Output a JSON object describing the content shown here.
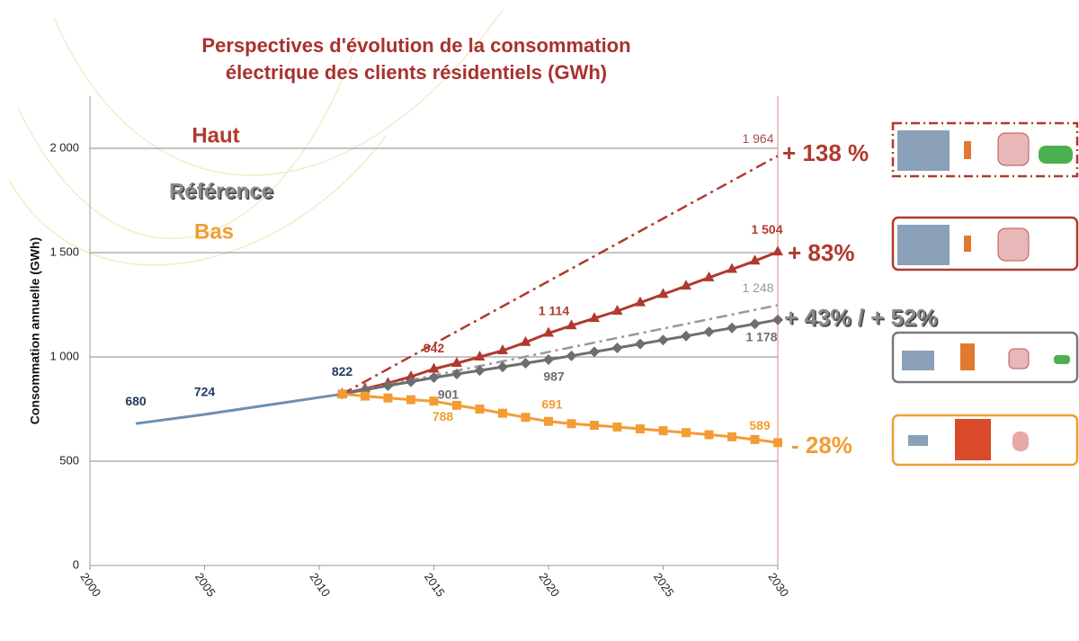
{
  "chart_data": {
    "type": "line",
    "title": [
      "Perspectives d'évolution de la consommation",
      "électrique des clients résidentiels (GWh)"
    ],
    "title_color": "#a8322d",
    "y_label": "Consommation annuelle (GWh)",
    "xlim": [
      2000,
      2030
    ],
    "xticks": [
      2000,
      2005,
      2010,
      2015,
      2020,
      2025,
      2030
    ],
    "ylim": [
      0,
      2250
    ],
    "yticks": [
      0,
      500,
      {
        "value": 1000,
        "label": "1 000"
      },
      {
        "value": 1500,
        "label": "1 500"
      },
      {
        "value": 2000,
        "label": "2 000"
      }
    ],
    "grid": true,
    "legend": [
      {
        "text": "Haut",
        "color": "#b03a2e"
      },
      {
        "text": "Référence",
        "color": "#8a8a8a"
      },
      {
        "text": "Bas",
        "color": "#f39c34"
      }
    ],
    "series": [
      {
        "color": "#6f8fb0",
        "dash": "solid",
        "marker": "none",
        "label_color": "#1f3b5a",
        "x": [
          2002,
          2005,
          2011
        ],
        "values": [
          680,
          724,
          822
        ],
        "value_labels": [
          "680",
          "724",
          "822"
        ]
      },
      {
        "color": "#b03a2e",
        "dash": "dashdot",
        "marker": "none",
        "label_color": "#a05050",
        "x": [
          2011,
          2030
        ],
        "values": [
          822,
          1964
        ],
        "value_labels": [
          null,
          "1 964"
        ]
      },
      {
        "color": "#b03a2e",
        "dash": "solid",
        "marker": "triangle",
        "label_color": "#b03a2e",
        "x": [
          2011,
          2012,
          2013,
          2014,
          2015,
          2016,
          2017,
          2018,
          2019,
          2020,
          2021,
          2022,
          2023,
          2024,
          2025,
          2026,
          2027,
          2028,
          2029,
          2030
        ],
        "values": [
          822,
          848,
          874,
          905,
          942,
          970,
          1000,
          1030,
          1070,
          1114,
          1150,
          1185,
          1220,
          1260,
          1300,
          1340,
          1380,
          1420,
          1460,
          1504
        ],
        "value_labels": [
          null,
          null,
          null,
          null,
          "942",
          null,
          null,
          null,
          null,
          "1 114",
          null,
          null,
          null,
          null,
          null,
          null,
          null,
          null,
          null,
          "1 504"
        ]
      },
      {
        "color": "#999999",
        "dash": "dashdot",
        "marker": "none",
        "label_color": "#999999",
        "x": [
          2011,
          2030
        ],
        "values": [
          822,
          1248
        ],
        "value_labels": [
          null,
          "1 248"
        ]
      },
      {
        "color": "#6e6e6e",
        "dash": "solid",
        "marker": "diamond",
        "label_color": "#6e6e6e",
        "x": [
          2011,
          2012,
          2013,
          2014,
          2015,
          2016,
          2017,
          2018,
          2019,
          2020,
          2021,
          2022,
          2023,
          2024,
          2025,
          2026,
          2027,
          2028,
          2029,
          2030
        ],
        "values": [
          822,
          842,
          862,
          881,
          901,
          918,
          935,
          952,
          970,
          987,
          1005,
          1024,
          1043,
          1062,
          1081,
          1100,
          1120,
          1139,
          1158,
          1178
        ],
        "value_labels": [
          null,
          null,
          null,
          null,
          "901",
          null,
          null,
          null,
          null,
          "987",
          null,
          null,
          null,
          null,
          null,
          null,
          null,
          null,
          null,
          "1 178"
        ]
      },
      {
        "color": "#f39c34",
        "dash": "solid",
        "marker": "square",
        "label_color": "#f39c34",
        "x": [
          2011,
          2012,
          2013,
          2014,
          2015,
          2016,
          2017,
          2018,
          2019,
          2020,
          2021,
          2022,
          2023,
          2024,
          2025,
          2026,
          2027,
          2028,
          2029,
          2030
        ],
        "values": [
          822,
          812,
          803,
          795,
          788,
          768,
          750,
          730,
          710,
          691,
          680,
          672,
          664,
          655,
          646,
          637,
          627,
          617,
          604,
          589
        ],
        "value_labels": [
          null,
          null,
          null,
          null,
          "788",
          null,
          null,
          null,
          null,
          "691",
          null,
          null,
          null,
          null,
          null,
          null,
          null,
          null,
          null,
          "589"
        ]
      }
    ],
    "annotations": [
      {
        "text": "+ 138 %",
        "color": "#b03a2e"
      },
      {
        "text": "+ 83%",
        "color": "#b03a2e"
      },
      {
        "text": "+ 43% / + 52%",
        "color": "#8a8a8a"
      },
      {
        "text": "- 28%",
        "color": "#f39c34"
      }
    ]
  }
}
